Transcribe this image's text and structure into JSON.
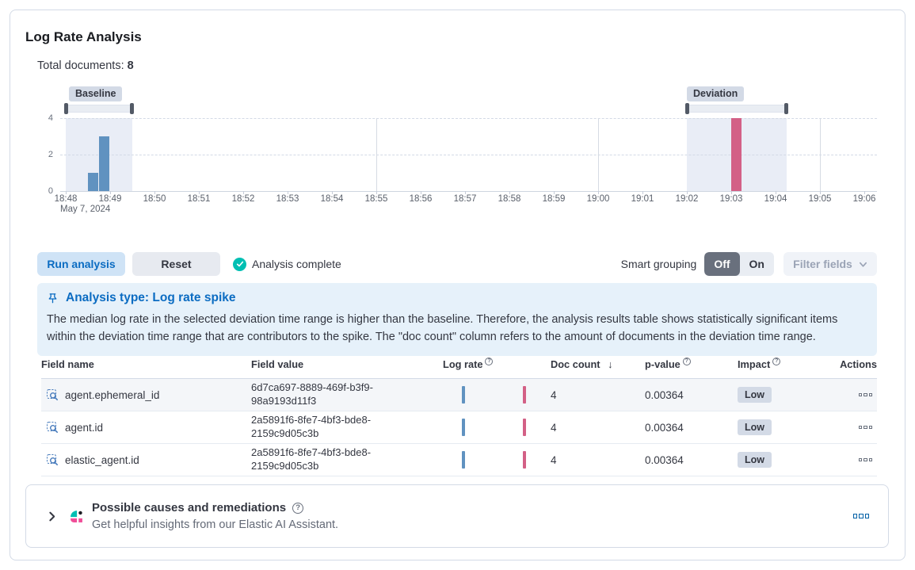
{
  "page": {
    "title": "Log Rate Analysis"
  },
  "summary": {
    "total_documents_label": "Total documents:",
    "total_documents_value": "8"
  },
  "chart": {
    "baseline_label": "Baseline",
    "deviation_label": "Deviation"
  },
  "chart_data": {
    "type": "bar",
    "title": "Document count histogram with baseline and deviation windows",
    "x_axis_labels": [
      "18:48",
      "18:49",
      "18:50",
      "18:51",
      "18:52",
      "18:53",
      "18:54",
      "18:55",
      "18:56",
      "18:57",
      "18:58",
      "18:59",
      "19:00",
      "19:01",
      "19:02",
      "19:03",
      "19:04",
      "19:05",
      "19:06"
    ],
    "x_axis_day_label": "May 7, 2024",
    "y_ticks": [
      0,
      2,
      4
    ],
    "ylim": [
      0,
      4
    ],
    "bars": [
      {
        "time": "18:48:30",
        "value": 1,
        "series": "baseline"
      },
      {
        "time": "18:48:45",
        "value": 3,
        "series": "baseline"
      },
      {
        "time": "19:03:00",
        "value": 4,
        "series": "deviation"
      }
    ],
    "baseline_window": [
      "18:48:00",
      "18:49:30"
    ],
    "deviation_window": [
      "19:02:00",
      "19:04:15"
    ],
    "five_minute_gridlines": [
      "18:55",
      "19:00",
      "19:05"
    ],
    "colors": {
      "baseline_bar": "#6092C0",
      "deviation_bar": "#D36086",
      "window_fill": "#E9EDF6"
    },
    "legend": "off",
    "grid": "dashed horizontal at 2 and 4"
  },
  "toolbar": {
    "run_button": "Run analysis",
    "reset_button": "Reset",
    "status": "Analysis complete",
    "smart_grouping_label": "Smart grouping",
    "toggle_off": "Off",
    "toggle_on": "On",
    "filter_fields_button": "Filter fields"
  },
  "callout": {
    "title": "Analysis type: Log rate spike",
    "body": "The median log rate in the selected deviation time range is higher than the baseline. Therefore, the analysis results table shows statistically significant items within the deviation time range that are contributors to the spike. The \"doc count\" column refers to the amount of documents in the deviation time range."
  },
  "table": {
    "headers": {
      "field_name": "Field name",
      "field_value": "Field value",
      "log_rate": "Log rate",
      "doc_count": "Doc count",
      "p_value": "p-value",
      "impact": "Impact",
      "actions": "Actions"
    },
    "sort": {
      "column": "doc_count",
      "direction": "desc",
      "icon": "↓"
    },
    "rows": [
      {
        "field_name": "agent.ephemeral_id",
        "field_value": "6d7ca697-8889-469f-b3f9-98a9193d11f3",
        "doc_count": "4",
        "p_value": "0.00364",
        "impact": "Low"
      },
      {
        "field_name": "agent.id",
        "field_value": "2a5891f6-8fe7-4bf3-bde8-2159c9d05c3b",
        "doc_count": "4",
        "p_value": "0.00364",
        "impact": "Low"
      },
      {
        "field_name": "elastic_agent.id",
        "field_value": "2a5891f6-8fe7-4bf3-bde8-2159c9d05c3b",
        "doc_count": "4",
        "p_value": "0.00364",
        "impact": "Low"
      }
    ]
  },
  "insights_panel": {
    "title": "Possible causes and remediations",
    "subtitle": "Get helpful insights from our Elastic AI Assistant."
  },
  "colors": {
    "accent_blue": "#0077CC",
    "success_teal": "#00BFB3",
    "baseline_bar": "#6092C0",
    "deviation_bar": "#D36086",
    "badge_gray": "#D3DAE6",
    "callout_bg": "#E6F1FA",
    "pink_brand": "#F04E98"
  }
}
